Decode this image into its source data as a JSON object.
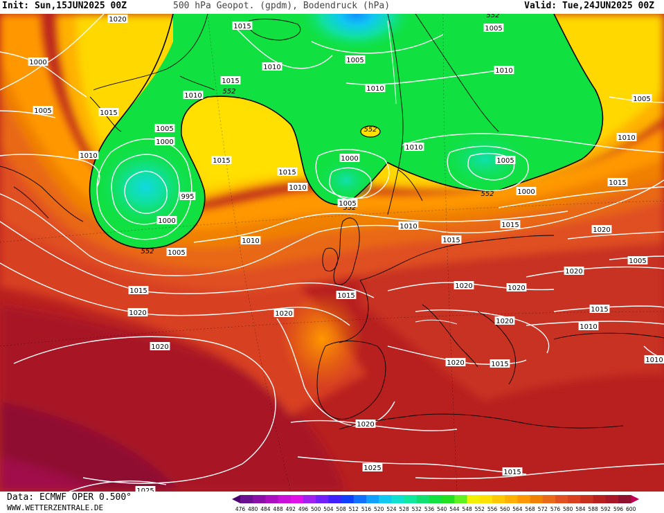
{
  "header": {
    "init": "Init: Sun,15JUN2025 00Z",
    "title": "500 hPa Geopot. (gpdm), Bodendruck (hPa)",
    "valid": "Valid: Tue,24JUN2025 00Z"
  },
  "footer": {
    "data_source": "Data: ECMWF OPER 0.500°",
    "website": "WWW.WETTERZENTRALE.DE"
  },
  "legend": {
    "ticks": [
      "476",
      "480",
      "484",
      "488",
      "492",
      "496",
      "500",
      "504",
      "508",
      "512",
      "516",
      "520",
      "524",
      "528",
      "532",
      "536",
      "540",
      "544",
      "548",
      "552",
      "556",
      "560",
      "564",
      "568",
      "572",
      "576",
      "580",
      "584",
      "588",
      "592",
      "596",
      "600"
    ],
    "colors": [
      "#4a0070",
      "#6a1090",
      "#8a10a8",
      "#aa10c0",
      "#c810d8",
      "#e010e8",
      "#a020f0",
      "#7020f8",
      "#4020ff",
      "#1040ff",
      "#1070ff",
      "#10a0ff",
      "#10c8f0",
      "#10e0d0",
      "#10e8a0",
      "#10e070",
      "#10e040",
      "#20e020",
      "#60f020",
      "#f0f000",
      "#ffe000",
      "#ffc800",
      "#ffb000",
      "#ff9800",
      "#f08000",
      "#e86818",
      "#e05020",
      "#d84020",
      "#c83020",
      "#b82020",
      "#a81828",
      "#901030",
      "#c00058"
    ]
  },
  "map": {
    "label_552": "552",
    "pressure_labels": [
      "1020",
      "1000",
      "1005",
      "1015",
      "1010",
      "1015",
      "1010",
      "1005",
      "1000",
      "995",
      "1000",
      "1005",
      "1015",
      "1015",
      "1010",
      "1015",
      "1010",
      "1005",
      "1010",
      "1000",
      "1005",
      "1010",
      "1015",
      "1010",
      "1005",
      "1010",
      "1000",
      "1005",
      "1015",
      "1010",
      "1015",
      "1005",
      "1015",
      "1020",
      "1010",
      "1020",
      "1005",
      "1020",
      "1020",
      "1020",
      "1015",
      "1010",
      "1020",
      "1020",
      "1020",
      "1015",
      "1020",
      "1025",
      "1015",
      "1025",
      "1020",
      "1010",
      "1015"
    ],
    "label_552_count": 6
  }
}
